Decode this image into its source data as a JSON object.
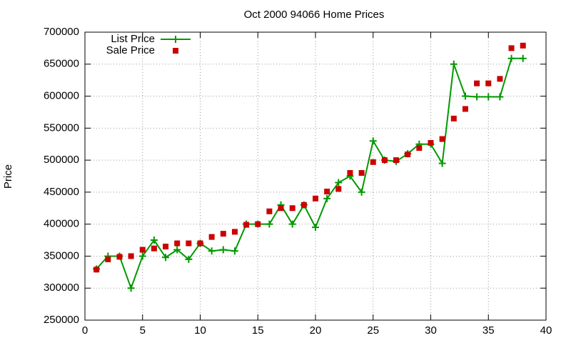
{
  "chart_data": {
    "type": "line",
    "title": "Oct 2000 94066 Home Prices",
    "y_label": "Price",
    "x": [
      1,
      2,
      3,
      4,
      5,
      6,
      7,
      8,
      9,
      10,
      11,
      12,
      13,
      14,
      15,
      16,
      17,
      18,
      19,
      20,
      21,
      22,
      23,
      24,
      25,
      26,
      27,
      28,
      29,
      30,
      31,
      32,
      33,
      34,
      35,
      36,
      37,
      38
    ],
    "series": [
      {
        "name": "List Price",
        "color": "#009900",
        "line": true,
        "marker": "plus",
        "values": [
          330000,
          350000,
          350000,
          300000,
          350000,
          375000,
          348000,
          360000,
          345000,
          370000,
          358000,
          360000,
          358000,
          400000,
          400000,
          400000,
          430000,
          400000,
          430000,
          395000,
          440000,
          465000,
          475000,
          450000,
          530000,
          500000,
          498000,
          510000,
          525000,
          525000,
          495000,
          650000,
          600000,
          599000,
          599000,
          599000,
          659000,
          659000
        ]
      },
      {
        "name": "Sale Price",
        "color": "#cc0000",
        "line": false,
        "marker": "square",
        "values": [
          329000,
          345000,
          349000,
          350000,
          360000,
          362000,
          365000,
          370000,
          370000,
          370000,
          380000,
          385000,
          388000,
          399000,
          400000,
          420000,
          425000,
          425000,
          430000,
          440000,
          451000,
          455000,
          480000,
          480000,
          497000,
          500000,
          500000,
          509000,
          519000,
          527000,
          533000,
          565000,
          580000,
          620000,
          620000,
          627000,
          675000,
          679000
        ]
      }
    ],
    "xlim": [
      0,
      40
    ],
    "xticks": [
      0,
      5,
      10,
      15,
      20,
      25,
      30,
      35,
      40
    ],
    "ylim": [
      250000,
      700000
    ],
    "yticks": [
      250000,
      300000,
      350000,
      400000,
      450000,
      500000,
      550000,
      600000,
      650000,
      700000
    ],
    "grid": true,
    "legend": "top-left"
  }
}
